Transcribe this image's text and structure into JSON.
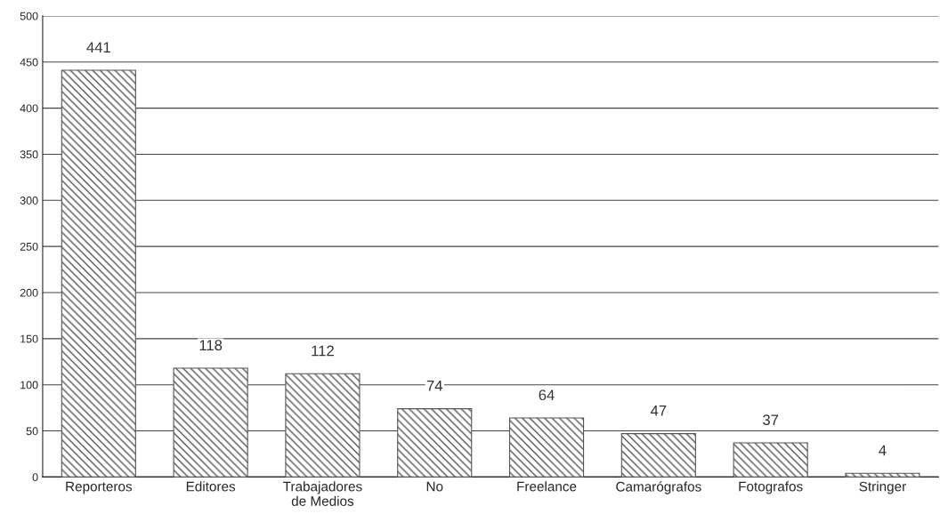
{
  "chart_data": {
    "type": "bar",
    "categories": [
      "Reporteros",
      "Editores",
      "Trabajadores\nde Medios",
      "No",
      "Freelance",
      "Camarógrafos",
      "Fotografos",
      "Stringer"
    ],
    "values": [
      441,
      118,
      112,
      74,
      64,
      47,
      37,
      4
    ],
    "color": "#555555",
    "ylim": [
      0,
      500
    ],
    "yticks": [
      0,
      50,
      100,
      150,
      200,
      250,
      300,
      350,
      400,
      450,
      500
    ],
    "grid": "y",
    "data_labels": true
  }
}
